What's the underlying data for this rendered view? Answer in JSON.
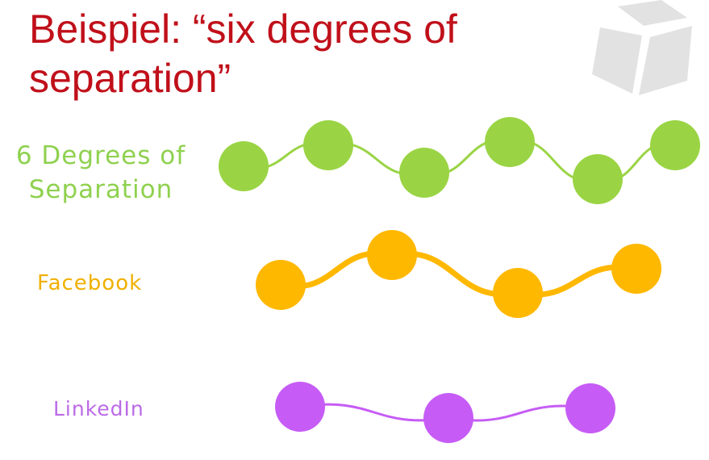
{
  "title": "Beispiel: “six degrees of separation”",
  "logo_icon": "gray-cube-icon",
  "colors": {
    "title": "#c0101a",
    "six_degrees": "#9ad444",
    "facebook": "#ffb800",
    "linkedin": "#c65cf5",
    "logo": "#e3e3e3"
  },
  "rows": [
    {
      "id": "six",
      "label": "6 Degrees of Separation",
      "node_count": 6
    },
    {
      "id": "facebook",
      "label": "Facebook",
      "node_count": 4
    },
    {
      "id": "linkedin",
      "label": "LinkedIn",
      "node_count": 3
    }
  ]
}
